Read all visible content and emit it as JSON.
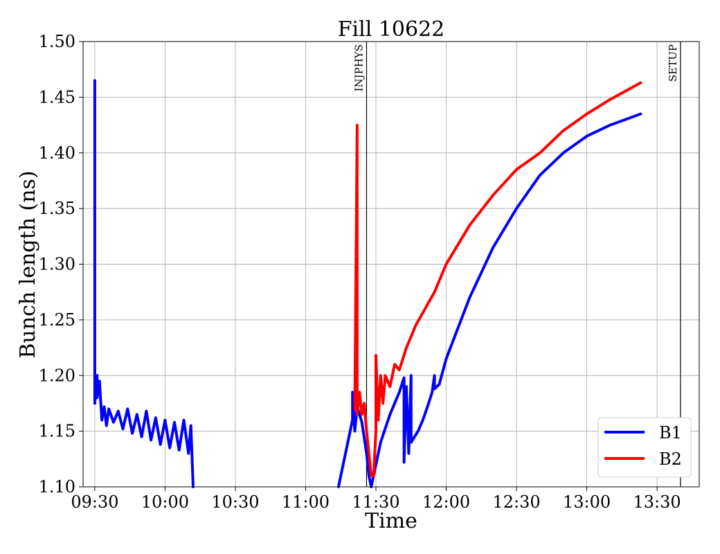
{
  "chart_data": {
    "type": "line",
    "title": "Fill 10622",
    "xlabel": "Time",
    "ylabel": "Bunch length (ns)",
    "xlim": [
      "09:25",
      "13:48"
    ],
    "ylim": [
      1.1,
      1.5
    ],
    "x_ticks": [
      "09:30",
      "10:00",
      "10:30",
      "11:00",
      "11:30",
      "12:00",
      "12:30",
      "13:00",
      "13:30"
    ],
    "y_ticks": [
      "1.10",
      "1.15",
      "1.20",
      "1.25",
      "1.30",
      "1.35",
      "1.40",
      "1.45",
      "1.50"
    ],
    "grid": true,
    "legend_position": "bottom-right",
    "markers": [
      {
        "time": "11:26",
        "label": "INJPHYS"
      },
      {
        "time": "13:40",
        "label": "SETUP"
      }
    ],
    "series": [
      {
        "name": "B1",
        "color": "#0000ff",
        "segments": [
          [
            [
              "09:30",
              1.465
            ],
            [
              "09:30",
              1.175
            ],
            [
              "09:31",
              1.2
            ],
            [
              "09:31",
              1.18
            ],
            [
              "09:32",
              1.195
            ],
            [
              "09:33",
              1.16
            ],
            [
              "09:34",
              1.172
            ],
            [
              "09:35",
              1.155
            ],
            [
              "09:36",
              1.17
            ],
            [
              "09:38",
              1.158
            ],
            [
              "09:40",
              1.168
            ],
            [
              "09:42",
              1.152
            ],
            [
              "09:44",
              1.17
            ],
            [
              "09:46",
              1.148
            ],
            [
              "09:48",
              1.165
            ],
            [
              "09:50",
              1.145
            ],
            [
              "09:52",
              1.168
            ],
            [
              "09:54",
              1.142
            ],
            [
              "09:56",
              1.162
            ],
            [
              "09:58",
              1.138
            ],
            [
              "10:00",
              1.16
            ],
            [
              "10:02",
              1.135
            ],
            [
              "10:04",
              1.158
            ],
            [
              "10:06",
              1.133
            ],
            [
              "10:08",
              1.16
            ],
            [
              "10:10",
              1.13
            ],
            [
              "10:11",
              1.155
            ],
            [
              "10:12",
              1.1
            ]
          ],
          [
            [
              "11:14",
              1.1
            ],
            [
              "11:18",
              1.14
            ],
            [
              "11:20",
              1.16
            ],
            [
              "11:20",
              1.185
            ],
            [
              "11:21",
              1.15
            ],
            [
              "11:22",
              1.172
            ],
            [
              "11:24",
              1.158
            ],
            [
              "11:26",
              1.13
            ],
            [
              "11:27",
              1.11
            ],
            [
              "11:28",
              1.1
            ]
          ],
          [
            [
              "11:28",
              1.1
            ],
            [
              "11:32",
              1.14
            ],
            [
              "11:36",
              1.165
            ],
            [
              "11:40",
              1.185
            ],
            [
              "11:42",
              1.198
            ],
            [
              "11:42",
              1.122
            ],
            [
              "11:43",
              1.19
            ],
            [
              "11:44",
              1.13
            ],
            [
              "11:45",
              1.2
            ],
            [
              "11:45",
              1.14
            ],
            [
              "11:48",
              1.15
            ],
            [
              "11:50",
              1.16
            ],
            [
              "11:52",
              1.172
            ],
            [
              "11:54",
              1.185
            ],
            [
              "11:55",
              1.2
            ],
            [
              "11:55",
              1.188
            ],
            [
              "11:57",
              1.192
            ],
            [
              "12:00",
              1.215
            ],
            [
              "12:10",
              1.27
            ],
            [
              "12:20",
              1.315
            ],
            [
              "12:30",
              1.35
            ],
            [
              "12:40",
              1.38
            ],
            [
              "12:50",
              1.4
            ],
            [
              "13:00",
              1.415
            ],
            [
              "13:10",
              1.425
            ],
            [
              "13:23",
              1.435
            ]
          ]
        ]
      },
      {
        "name": "B2",
        "color": "#ff0000",
        "segments": [
          [
            [
              "11:21",
              1.17
            ],
            [
              "11:22",
              1.425
            ],
            [
              "11:22",
              1.165
            ],
            [
              "11:23",
              1.185
            ],
            [
              "11:24",
              1.165
            ],
            [
              "11:25",
              1.175
            ],
            [
              "11:26",
              1.15
            ],
            [
              "11:27",
              1.13
            ],
            [
              "11:28",
              1.11
            ],
            [
              "11:29",
              1.11
            ],
            [
              "11:30",
              1.15
            ],
            [
              "11:30",
              1.218
            ],
            [
              "11:31",
              1.16
            ],
            [
              "11:32",
              1.2
            ],
            [
              "11:33",
              1.175
            ],
            [
              "11:34",
              1.2
            ],
            [
              "11:36",
              1.19
            ],
            [
              "11:38",
              1.21
            ],
            [
              "11:40",
              1.205
            ],
            [
              "11:43",
              1.225
            ],
            [
              "11:47",
              1.245
            ],
            [
              "11:55",
              1.275
            ],
            [
              "12:00",
              1.3
            ],
            [
              "12:10",
              1.335
            ],
            [
              "12:20",
              1.362
            ],
            [
              "12:30",
              1.385
            ],
            [
              "12:40",
              1.4
            ],
            [
              "12:50",
              1.42
            ],
            [
              "13:00",
              1.435
            ],
            [
              "13:10",
              1.448
            ],
            [
              "13:23",
              1.463
            ]
          ]
        ]
      }
    ]
  }
}
